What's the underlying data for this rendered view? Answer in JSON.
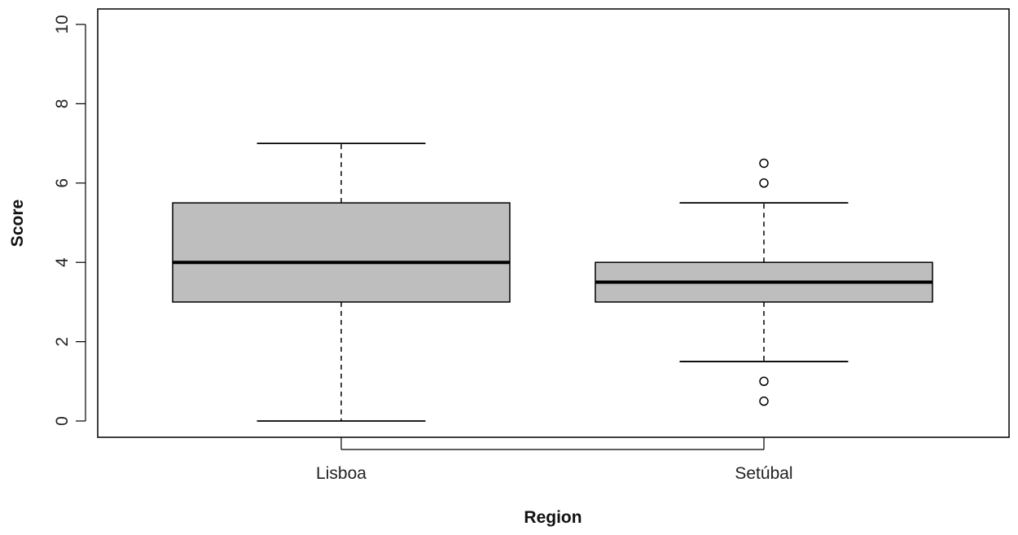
{
  "chart_data": {
    "type": "box",
    "title": "",
    "xlabel": "Region",
    "ylabel": "Score",
    "ylim": [
      0,
      10
    ],
    "yticks": [
      0,
      2,
      4,
      6,
      8,
      10
    ],
    "categories": [
      "Lisboa",
      "Setúbal"
    ],
    "boxes": [
      {
        "category": "Lisboa",
        "whisker_low": 0,
        "q1": 3,
        "median": 4,
        "q3": 5.5,
        "whisker_high": 7,
        "outliers": []
      },
      {
        "category": "Setúbal",
        "whisker_low": 1.5,
        "q1": 3,
        "median": 3.5,
        "q3": 4,
        "whisker_high": 5.5,
        "outliers": [
          0.5,
          1,
          6,
          6.5
        ]
      }
    ],
    "grid": false,
    "colors": {
      "box_fill": "#bebebe",
      "stroke": "#000000"
    }
  }
}
